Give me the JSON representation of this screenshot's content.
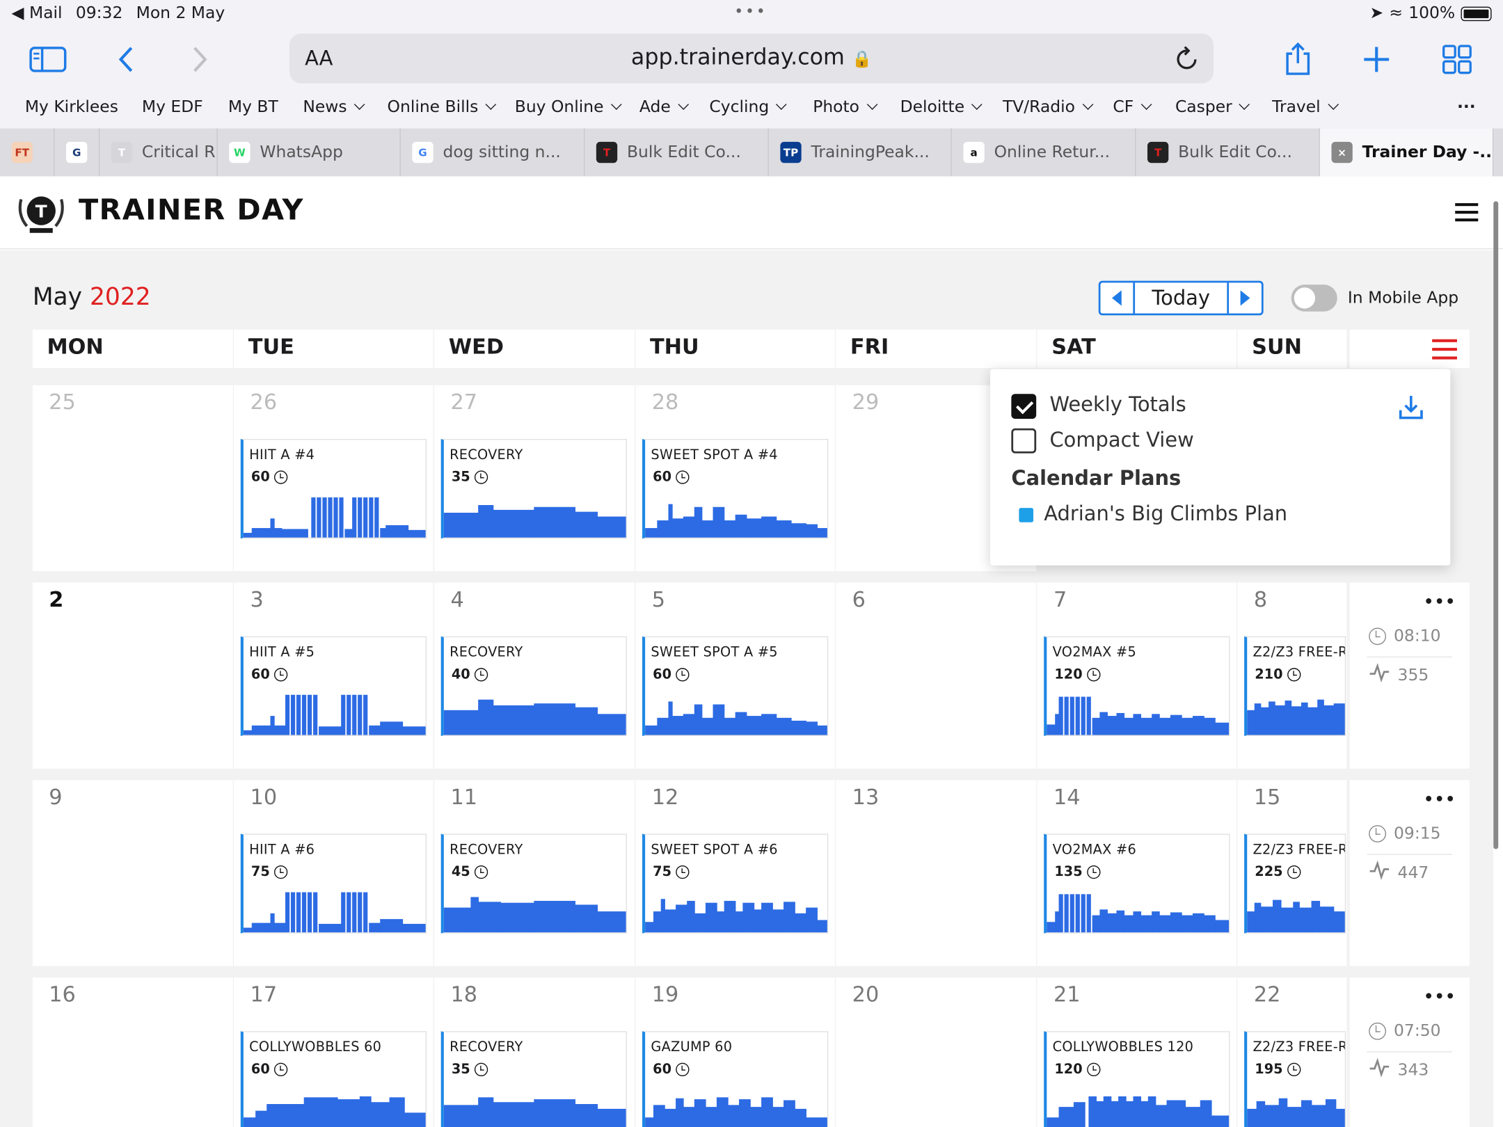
{
  "status": {
    "back_app": "Mail",
    "time": "09:32",
    "date": "Mon 2 May",
    "battery": "100%"
  },
  "browser": {
    "aa": "AA",
    "url": "app.trainerday.com"
  },
  "bookmarks": [
    {
      "label": "My Kirklees",
      "menu": false
    },
    {
      "label": "My EDF",
      "menu": false
    },
    {
      "label": "My BT",
      "menu": false
    },
    {
      "label": "News",
      "menu": true
    },
    {
      "label": "Online Bills",
      "menu": true
    },
    {
      "label": "Buy Online",
      "menu": true
    },
    {
      "label": "Ade",
      "menu": true
    },
    {
      "label": "Cycling",
      "menu": true
    },
    {
      "label": "Photo",
      "menu": true
    },
    {
      "label": "Deloitte",
      "menu": true
    },
    {
      "label": "TV/Radio",
      "menu": true
    },
    {
      "label": "CF",
      "menu": true
    },
    {
      "label": "Casper",
      "menu": true
    },
    {
      "label": "Travel",
      "menu": true
    }
  ],
  "tabs": [
    {
      "label": "",
      "icon": "FT"
    },
    {
      "label": "",
      "icon": "G"
    },
    {
      "label": "Critical R",
      "icon": "T"
    },
    {
      "label": "WhatsApp",
      "icon": "W"
    },
    {
      "label": "dog sitting n...",
      "icon": "G"
    },
    {
      "label": "Bulk Edit Co...",
      "icon": "T"
    },
    {
      "label": "TrainingPeak...",
      "icon": "TP"
    },
    {
      "label": "Online Retur...",
      "icon": "a"
    },
    {
      "label": "Bulk Edit Co...",
      "icon": "T"
    },
    {
      "label": "Trainer Day -...",
      "icon": "×"
    }
  ],
  "app": {
    "brand": "TRAINER DAY"
  },
  "calendar": {
    "month": "May",
    "year": "2022",
    "today_label": "Today",
    "mobile_toggle_label": "In Mobile App",
    "day_headers": [
      "MON",
      "TUE",
      "WED",
      "THU",
      "FRI",
      "SAT",
      "SUN"
    ],
    "weeks": [
      {
        "days": [
          {
            "num": "25",
            "style": "faded",
            "workout": null
          },
          {
            "num": "26",
            "style": "faded",
            "workout": {
              "title": "HIIT A #4",
              "dur": "60",
              "shape": "hiit4"
            }
          },
          {
            "num": "27",
            "style": "faded",
            "workout": {
              "title": "RECOVERY",
              "dur": "35",
              "shape": "rec1"
            }
          },
          {
            "num": "28",
            "style": "faded",
            "workout": {
              "title": "SWEET SPOT A #4",
              "dur": "60",
              "shape": "ss"
            }
          },
          {
            "num": "29",
            "style": "faded",
            "workout": null
          }
        ],
        "totals": null
      },
      {
        "days": [
          {
            "num": "2",
            "style": "bold",
            "workout": null
          },
          {
            "num": "3",
            "style": "",
            "workout": {
              "title": "HIIT A #5",
              "dur": "60",
              "shape": "hiit5"
            }
          },
          {
            "num": "4",
            "style": "",
            "workout": {
              "title": "RECOVERY",
              "dur": "40",
              "shape": "rec2"
            }
          },
          {
            "num": "5",
            "style": "",
            "workout": {
              "title": "SWEET SPOT A #5",
              "dur": "60",
              "shape": "ss"
            }
          },
          {
            "num": "6",
            "style": "",
            "workout": null
          },
          {
            "num": "7",
            "style": "",
            "workout": {
              "title": "VO2MAX #5",
              "dur": "120",
              "shape": "vo2"
            }
          },
          {
            "num": "8",
            "style": "",
            "workout": {
              "title": "Z2/Z3 FREE-R",
              "dur": "210",
              "shape": "z2"
            }
          }
        ],
        "totals": {
          "time": "08:10",
          "tss": "355"
        }
      },
      {
        "days": [
          {
            "num": "9",
            "style": "",
            "workout": null
          },
          {
            "num": "10",
            "style": "",
            "workout": {
              "title": "HIIT A #6",
              "dur": "75",
              "shape": "hiit6"
            }
          },
          {
            "num": "11",
            "style": "",
            "workout": {
              "title": "RECOVERY",
              "dur": "45",
              "shape": "rec3"
            }
          },
          {
            "num": "12",
            "style": "",
            "workout": {
              "title": "SWEET SPOT A #6",
              "dur": "75",
              "shape": "ss6"
            }
          },
          {
            "num": "13",
            "style": "",
            "workout": null
          },
          {
            "num": "14",
            "style": "",
            "workout": {
              "title": "VO2MAX #6",
              "dur": "135",
              "shape": "vo2"
            }
          },
          {
            "num": "15",
            "style": "",
            "workout": {
              "title": "Z2/Z3 FREE-R",
              "dur": "225",
              "shape": "z2b"
            }
          }
        ],
        "totals": {
          "time": "09:15",
          "tss": "447"
        }
      },
      {
        "days": [
          {
            "num": "16",
            "style": "",
            "workout": null
          },
          {
            "num": "17",
            "style": "",
            "workout": {
              "title": "COLLYWOBBLES 60",
              "dur": "60",
              "shape": "cw"
            }
          },
          {
            "num": "18",
            "style": "",
            "workout": {
              "title": "RECOVERY",
              "dur": "35",
              "shape": "rec1"
            }
          },
          {
            "num": "19",
            "style": "",
            "workout": {
              "title": "GAZUMP 60",
              "dur": "60",
              "shape": "gz"
            }
          },
          {
            "num": "20",
            "style": "",
            "workout": null
          },
          {
            "num": "21",
            "style": "",
            "workout": {
              "title": "COLLYWOBBLES 120",
              "dur": "120",
              "shape": "cw2"
            }
          },
          {
            "num": "22",
            "style": "",
            "workout": {
              "title": "Z2/Z3 FREE-R",
              "dur": "195",
              "shape": "z2c"
            }
          }
        ],
        "totals": {
          "time": "07:50",
          "tss": "343"
        }
      }
    ]
  },
  "popup": {
    "weekly_totals_label": "Weekly Totals",
    "weekly_totals_checked": true,
    "compact_view_label": "Compact View",
    "compact_view_checked": false,
    "plans_heading": "Calendar Plans",
    "plans": [
      {
        "name": "Adrian's Big Climbs Plan",
        "color": "#1ea0e8"
      }
    ]
  },
  "colors": {
    "accent": "#1e7be6",
    "workout_bar": "#2d6be4",
    "year": "#e02020",
    "menu_icon": "#e02020"
  }
}
